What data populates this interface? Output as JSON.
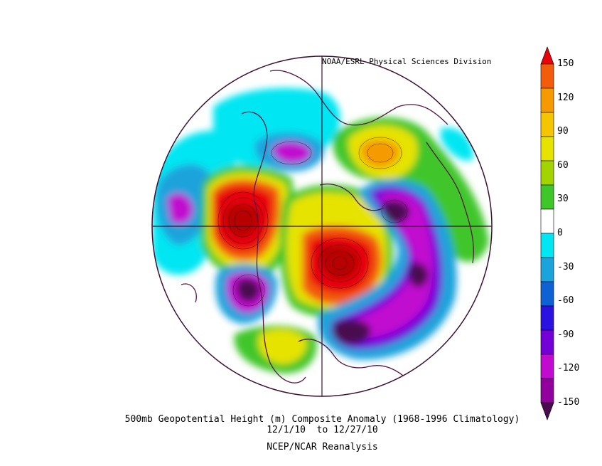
{
  "credit": "NOAA/ESRL Physical Sciences Division",
  "caption": {
    "title": "500mb Geopotential Height (m) Composite Anomaly (1968-1996 Climatology)",
    "dates": "12/1/10  to 12/27/10",
    "source": "NCEP/NCAR Reanalysis"
  },
  "colorbar": {
    "tick_labels": [
      "150",
      "120",
      "90",
      "60",
      "30",
      "0",
      "-30",
      "-60",
      "-90",
      "-120",
      "-150"
    ],
    "colors": [
      "#e8000b",
      "#f25c0a",
      "#f59a00",
      "#f5c500",
      "#e6e300",
      "#a4d400",
      "#3fc629",
      "#ffffff",
      "#00e6f2",
      "#1ba3dc",
      "#0f62d4",
      "#2b12e0",
      "#7400d8",
      "#c10cd0",
      "#91009d",
      "#4a0a50"
    ]
  },
  "map": {
    "projection": "north-polar-stereographic",
    "colors": {
      "coast": "#5a1745",
      "grid": "#3b1030",
      "strong_pos": "#b80000",
      "pos": "#e8000b",
      "orange": "#f25c0a",
      "yellow": "#e6e300",
      "green": "#3fc629",
      "cyan": "#00e6f2",
      "blue": "#1ba3dc",
      "purple": "#7400d8",
      "magenta": "#c10cd0",
      "dark_purple": "#4a0a50"
    }
  }
}
